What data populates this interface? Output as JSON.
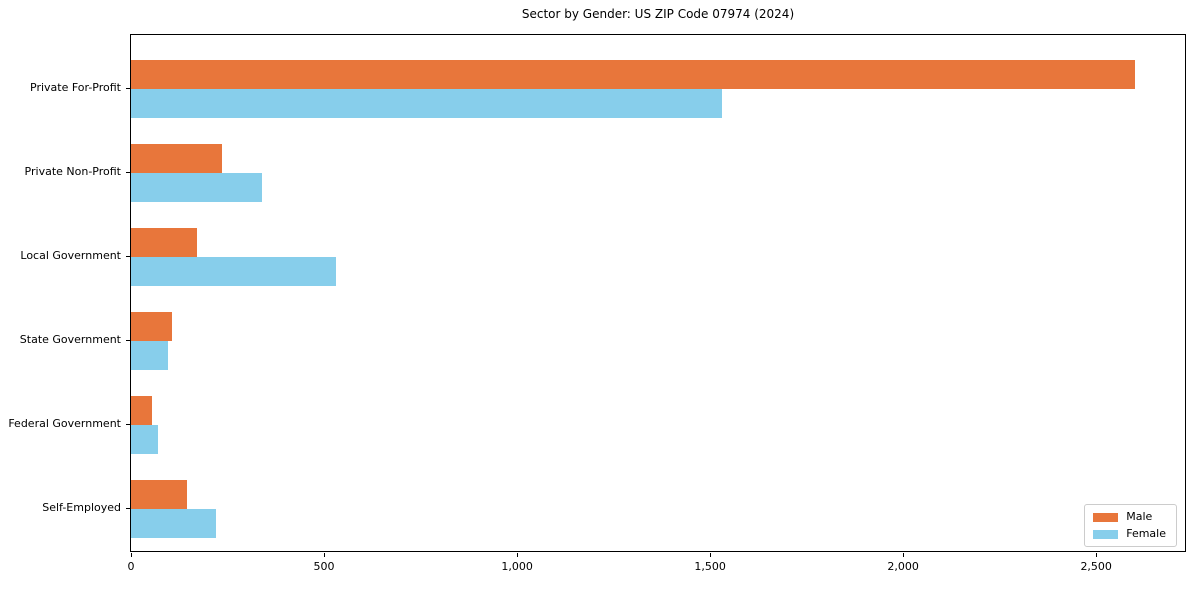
{
  "chart_data": {
    "type": "bar",
    "orientation": "horizontal",
    "title": "Sector by Gender: US ZIP Code 07974 (2024)",
    "xlabel": "",
    "ylabel": "",
    "categories": [
      "Private For-Profit",
      "Private Non-Profit",
      "Local Government",
      "State Government",
      "Federal Government",
      "Self-Employed"
    ],
    "series": [
      {
        "name": "Male",
        "color": "#e8763b",
        "values": [
          2600,
          235,
          170,
          105,
          55,
          145
        ]
      },
      {
        "name": "Female",
        "color": "#87ceeb",
        "values": [
          1530,
          340,
          530,
          95,
          70,
          220
        ]
      }
    ],
    "xlim": [
      0,
      2730
    ],
    "xticks": {
      "values": [
        0,
        500,
        1000,
        1500,
        2000,
        2500
      ],
      "labels": [
        "0",
        "500",
        "1,000",
        "1,500",
        "2,000",
        "2,500"
      ]
    },
    "grid": false,
    "legend": {
      "position": "lower right",
      "entries": [
        "Male",
        "Female"
      ]
    }
  }
}
